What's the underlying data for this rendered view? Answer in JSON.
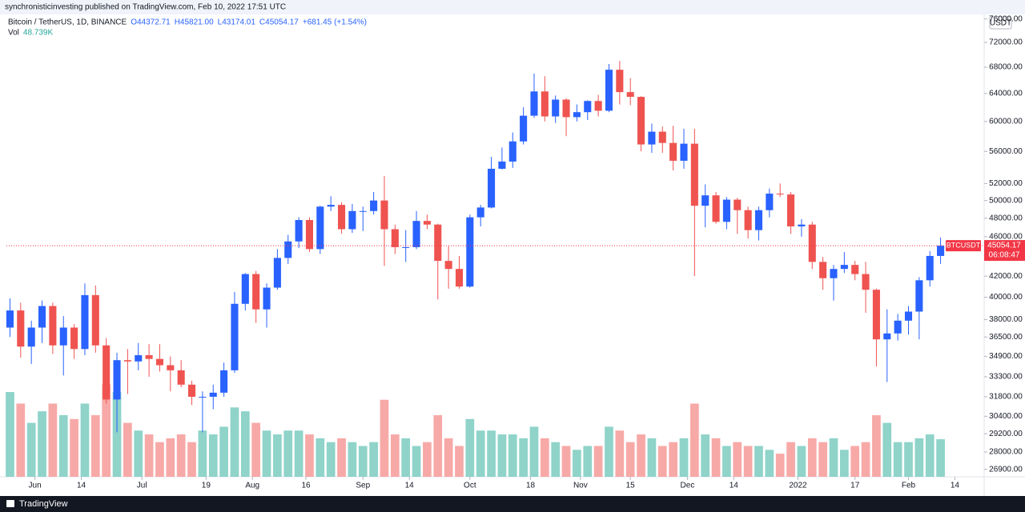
{
  "header": {
    "publisher": "synchronisticinvesting published on TradingView.com, Feb 10, 2022 17:51 UTC"
  },
  "footer": {
    "brand": "TradingView"
  },
  "chart_data": {
    "type": "candlestick",
    "symbol": "Bitcoin / TetherUS, 1D, BINANCE",
    "legend": {
      "open": "O44372.71",
      "high": "H45821.00",
      "low": "L43174.01",
      "close": "C45054.17",
      "change": "+681.45 (+1.54%)",
      "volume_label": "Vol",
      "volume": "48.739K"
    },
    "currency": "USDT",
    "countdown": "06:08:47",
    "log_scale": true,
    "grid": false,
    "xlim": [
      "2021-05-24",
      "2022-02-22"
    ],
    "ylim": [
      26440,
      76800
    ],
    "volume_ylim": [
      0,
      600
    ],
    "yticks": [
      {
        "value": 76000,
        "label": "76000.00"
      },
      {
        "value": 72000,
        "label": "72000.00"
      },
      {
        "value": 68000,
        "label": "68000.00"
      },
      {
        "value": 64000,
        "label": "64000.00"
      },
      {
        "value": 60000,
        "label": "60000.00"
      },
      {
        "value": 56000,
        "label": "56000.00"
      },
      {
        "value": 52000,
        "label": "52000.00"
      },
      {
        "value": 50000,
        "label": "50000.00"
      },
      {
        "value": 48000,
        "label": "48000.00"
      },
      {
        "value": 46000,
        "label": "46000.00"
      },
      {
        "value": 42000,
        "label": "42000.00"
      },
      {
        "value": 40000,
        "label": "40000.00"
      },
      {
        "value": 38000,
        "label": "38000.00"
      },
      {
        "value": 36500,
        "label": "36500.00"
      },
      {
        "value": 34900,
        "label": "34900.00"
      },
      {
        "value": 33300,
        "label": "33300.00"
      },
      {
        "value": 31800,
        "label": "31800.00"
      },
      {
        "value": 30400,
        "label": "30400.00"
      },
      {
        "value": 29200,
        "label": "29200.00"
      },
      {
        "value": 28000,
        "label": "28000.00"
      },
      {
        "value": 26900,
        "label": "26900.00"
      }
    ],
    "xticks": [
      {
        "value": "2021-06-01",
        "label": "Jun"
      },
      {
        "value": "2021-06-14",
        "label": "14"
      },
      {
        "value": "2021-07-01",
        "label": "Jul"
      },
      {
        "value": "2021-07-19",
        "label": "19"
      },
      {
        "value": "2021-08-01",
        "label": "Aug"
      },
      {
        "value": "2021-08-16",
        "label": "16"
      },
      {
        "value": "2021-09-01",
        "label": "Sep"
      },
      {
        "value": "2021-09-14",
        "label": "14"
      },
      {
        "value": "2021-10-01",
        "label": "Oct"
      },
      {
        "value": "2021-10-18",
        "label": "18"
      },
      {
        "value": "2021-11-01",
        "label": "Nov"
      },
      {
        "value": "2021-11-15",
        "label": "15"
      },
      {
        "value": "2021-12-01",
        "label": "Dec"
      },
      {
        "value": "2021-12-14",
        "label": "14"
      },
      {
        "value": "2022-01-01",
        "label": "2022"
      },
      {
        "value": "2022-01-17",
        "label": "17"
      },
      {
        "value": "2022-02-01",
        "label": "Feb"
      },
      {
        "value": "2022-02-14",
        "label": "14"
      }
    ],
    "series": [
      {
        "name": "BTCUSDT",
        "up_color": "#2962ff",
        "down_color": "#ef5350",
        "volume_up_color": "#8fd3c9",
        "volume_down_color": "#f7a9a7",
        "price_line_color": "#f23645",
        "x": [
          "2021-05-25",
          "2021-05-28",
          "2021-05-31",
          "2021-06-03",
          "2021-06-06",
          "2021-06-09",
          "2021-06-12",
          "2021-06-15",
          "2021-06-18",
          "2021-06-21",
          "2021-06-24",
          "2021-06-27",
          "2021-06-30",
          "2021-07-03",
          "2021-07-06",
          "2021-07-09",
          "2021-07-12",
          "2021-07-15",
          "2021-07-18",
          "2021-07-21",
          "2021-07-24",
          "2021-07-27",
          "2021-07-30",
          "2021-08-02",
          "2021-08-05",
          "2021-08-08",
          "2021-08-11",
          "2021-08-14",
          "2021-08-17",
          "2021-08-20",
          "2021-08-23",
          "2021-08-26",
          "2021-08-29",
          "2021-09-01",
          "2021-09-04",
          "2021-09-07",
          "2021-09-10",
          "2021-09-13",
          "2021-09-16",
          "2021-09-19",
          "2021-09-22",
          "2021-09-25",
          "2021-09-28",
          "2021-10-01",
          "2021-10-04",
          "2021-10-07",
          "2021-10-10",
          "2021-10-13",
          "2021-10-16",
          "2021-10-19",
          "2021-10-22",
          "2021-10-25",
          "2021-10-28",
          "2021-10-31",
          "2021-11-03",
          "2021-11-06",
          "2021-11-09",
          "2021-11-12",
          "2021-11-15",
          "2021-11-18",
          "2021-11-21",
          "2021-11-24",
          "2021-11-27",
          "2021-11-30",
          "2021-12-03",
          "2021-12-06",
          "2021-12-09",
          "2021-12-12",
          "2021-12-15",
          "2021-12-18",
          "2021-12-21",
          "2021-12-24",
          "2021-12-27",
          "2021-12-30",
          "2022-01-02",
          "2022-01-05",
          "2022-01-08",
          "2022-01-11",
          "2022-01-14",
          "2022-01-17",
          "2022-01-20",
          "2022-01-23",
          "2022-01-26",
          "2022-01-29",
          "2022-02-01",
          "2022-02-04",
          "2022-02-07",
          "2022-02-10"
        ],
        "open": [
          37300,
          38800,
          35700,
          37300,
          39200,
          35800,
          37300,
          35500,
          40200,
          35800,
          31600,
          34600,
          34500,
          35000,
          34700,
          34200,
          33800,
          32700,
          31800,
          31800,
          32100,
          33800,
          39400,
          42200,
          38900,
          40900,
          43800,
          45500,
          47800,
          44700,
          49300,
          49500,
          46800,
          48800,
          48800,
          50000,
          46800,
          44900,
          44900,
          47700,
          47300,
          43500,
          42700,
          41000,
          48100,
          49200,
          53800,
          54700,
          57300,
          60800,
          64300,
          60700,
          63100,
          60600,
          61300,
          62900,
          61500,
          67600,
          64200,
          63500,
          56900,
          58600,
          57100,
          54800,
          57000,
          49400,
          50600,
          47600,
          50100,
          48900,
          46700,
          48900,
          50800,
          50700,
          47100,
          47300,
          43400,
          41800,
          42700,
          43100,
          42200,
          40700,
          36300,
          36800,
          37900,
          38700,
          41600,
          44000
        ],
        "high": [
          39900,
          39500,
          37900,
          39700,
          39500,
          38300,
          37600,
          41300,
          41100,
          36400,
          35200,
          35500,
          36000,
          35900,
          35900,
          34900,
          34600,
          33000,
          32200,
          32700,
          34400,
          40500,
          42300,
          42500,
          41300,
          44700,
          46200,
          48100,
          48100,
          49400,
          50500,
          49800,
          49600,
          49300,
          51000,
          52900,
          47300,
          46700,
          48800,
          48400,
          47400,
          45000,
          44000,
          48400,
          49500,
          55300,
          56500,
          58500,
          62000,
          67000,
          66600,
          63700,
          63300,
          62400,
          63000,
          63800,
          68500,
          69000,
          66300,
          63600,
          59700,
          59300,
          59400,
          59000,
          59000,
          51900,
          51000,
          50400,
          50300,
          49300,
          49300,
          51400,
          52000,
          51000,
          47900,
          47600,
          43900,
          43100,
          44400,
          43500,
          43400,
          40800,
          38900,
          38500,
          39200,
          41900,
          44500,
          45900
        ],
        "low": [
          36500,
          34800,
          34300,
          36000,
          35100,
          33400,
          34700,
          35000,
          35200,
          31300,
          29300,
          32000,
          33800,
          33300,
          33700,
          32200,
          32500,
          31200,
          29300,
          30900,
          31800,
          33600,
          38800,
          37700,
          37300,
          40700,
          43200,
          44800,
          44400,
          44200,
          48800,
          46300,
          46400,
          46600,
          48400,
          43000,
          44200,
          43400,
          44700,
          46800,
          39800,
          40800,
          40800,
          40900,
          47100,
          49100,
          53700,
          53900,
          56900,
          60500,
          60000,
          59800,
          58000,
          60000,
          60200,
          60700,
          61300,
          62400,
          62300,
          56000,
          55800,
          55800,
          53600,
          53800,
          42000,
          47000,
          47400,
          46800,
          46300,
          45800,
          45600,
          48100,
          50400,
          46300,
          46000,
          42700,
          40700,
          39700,
          42300,
          41600,
          38600,
          34100,
          32900,
          36200,
          36700,
          36300,
          41000,
          43200
        ],
        "close": [
          38800,
          35700,
          37300,
          39200,
          35800,
          37300,
          35500,
          40200,
          35800,
          31600,
          34600,
          34500,
          35000,
          34700,
          34200,
          33800,
          32700,
          31800,
          31800,
          32100,
          33800,
          39400,
          42200,
          38900,
          40900,
          43800,
          45500,
          47800,
          44700,
          49300,
          49500,
          46800,
          48800,
          48800,
          50000,
          46800,
          44900,
          44900,
          47700,
          47300,
          43500,
          42700,
          41000,
          48100,
          49200,
          53800,
          54700,
          57300,
          60800,
          64300,
          60700,
          63100,
          60600,
          61300,
          62900,
          61500,
          67600,
          64200,
          63500,
          56900,
          58600,
          57100,
          54800,
          57000,
          49400,
          50600,
          47600,
          50100,
          48900,
          46700,
          48900,
          50800,
          50700,
          47100,
          47300,
          43400,
          41800,
          42700,
          43100,
          42200,
          40700,
          36300,
          36800,
          37900,
          38700,
          41600,
          44000,
          45054.17
        ],
        "volume": [
          110,
          95,
          70,
          85,
          95,
          80,
          75,
          95,
          80,
          120,
          110,
          70,
          60,
          55,
          45,
          50,
          55,
          45,
          60,
          55,
          65,
          90,
          85,
          70,
          60,
          55,
          60,
          60,
          55,
          50,
          45,
          50,
          45,
          40,
          45,
          100,
          55,
          50,
          40,
          45,
          80,
          50,
          40,
          75,
          60,
          60,
          55,
          55,
          50,
          65,
          50,
          45,
          40,
          35,
          40,
          40,
          65,
          60,
          45,
          55,
          50,
          40,
          45,
          50,
          95,
          55,
          50,
          40,
          45,
          40,
          40,
          35,
          30,
          45,
          40,
          50,
          45,
          50,
          35,
          40,
          45,
          80,
          70,
          45,
          45,
          50,
          55,
          48.739
        ]
      }
    ]
  }
}
